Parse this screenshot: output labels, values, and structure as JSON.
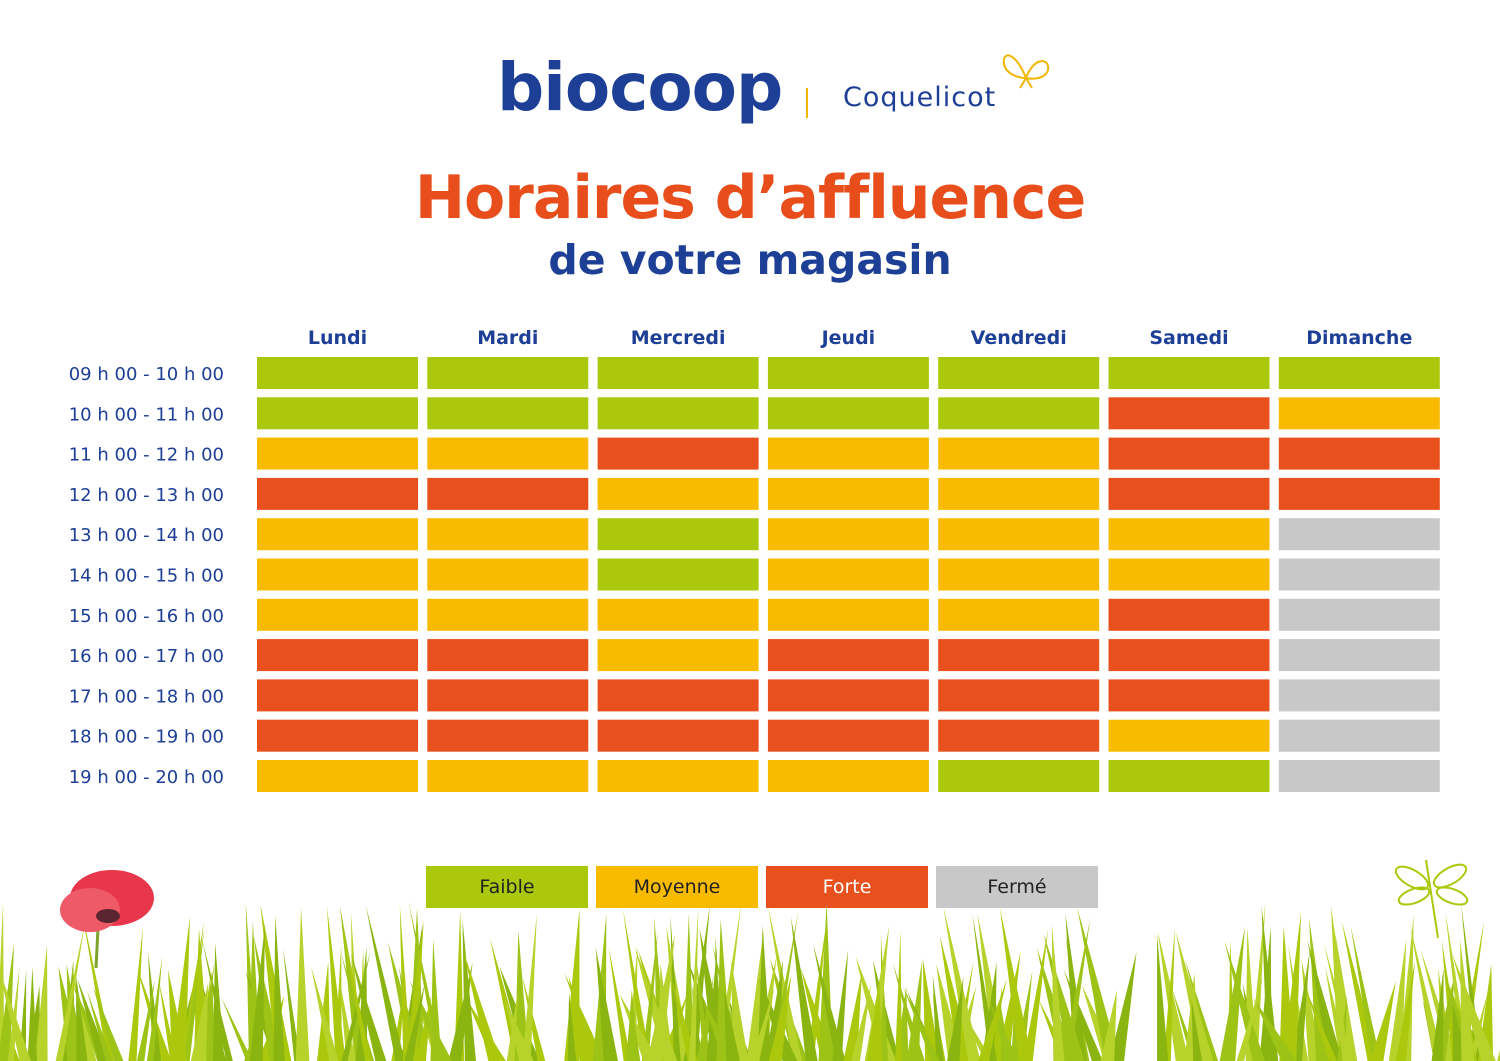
{
  "header": {
    "brand": "biocoop",
    "store": "Coquelicot",
    "title": "Horaires d’affluence",
    "subtitle": "de votre magasin"
  },
  "colors": {
    "Faible": "#abc80c",
    "Moyenne": "#f9bb00",
    "Forte": "#e8511e",
    "Fermé": "#c8c8c8",
    "brand_blue": "#1d3f95",
    "title_orange": "#e84e1b"
  },
  "legend": [
    {
      "label": "Faible",
      "label_color": "#222222"
    },
    {
      "label": "Moyenne",
      "label_color": "#222222"
    },
    {
      "label": "Forte",
      "label_color": "#ffffff"
    },
    {
      "label": "Fermé",
      "label_color": "#222222"
    }
  ],
  "chart_data": {
    "type": "heatmap",
    "columns": [
      "Lundi",
      "Mardi",
      "Mercredi",
      "Jeudi",
      "Vendredi",
      "Samedi",
      "Dimanche"
    ],
    "rows": [
      "09 h 00 - 10 h 00",
      "10 h 00 - 11 h 00",
      "11 h 00 - 12 h 00",
      "12 h 00 - 13 h 00",
      "13 h 00 - 14 h 00",
      "14 h 00 - 15 h 00",
      "15 h 00 - 16 h 00",
      "16 h 00 - 17 h 00",
      "17 h 00 - 18 h 00",
      "18 h 00 - 19 h 00",
      "19 h 00 - 20 h 00"
    ],
    "values": [
      [
        "Faible",
        "Faible",
        "Faible",
        "Faible",
        "Faible",
        "Faible",
        "Faible"
      ],
      [
        "Faible",
        "Faible",
        "Faible",
        "Faible",
        "Faible",
        "Forte",
        "Moyenne"
      ],
      [
        "Moyenne",
        "Moyenne",
        "Forte",
        "Moyenne",
        "Moyenne",
        "Forte",
        "Forte"
      ],
      [
        "Forte",
        "Forte",
        "Moyenne",
        "Moyenne",
        "Moyenne",
        "Forte",
        "Forte"
      ],
      [
        "Moyenne",
        "Moyenne",
        "Faible",
        "Moyenne",
        "Moyenne",
        "Moyenne",
        "Fermé"
      ],
      [
        "Moyenne",
        "Moyenne",
        "Faible",
        "Moyenne",
        "Moyenne",
        "Moyenne",
        "Fermé"
      ],
      [
        "Moyenne",
        "Moyenne",
        "Moyenne",
        "Moyenne",
        "Moyenne",
        "Forte",
        "Fermé"
      ],
      [
        "Forte",
        "Forte",
        "Moyenne",
        "Forte",
        "Forte",
        "Forte",
        "Fermé"
      ],
      [
        "Forte",
        "Forte",
        "Forte",
        "Forte",
        "Forte",
        "Forte",
        "Fermé"
      ],
      [
        "Forte",
        "Forte",
        "Forte",
        "Forte",
        "Forte",
        "Moyenne",
        "Fermé"
      ],
      [
        "Moyenne",
        "Moyenne",
        "Moyenne",
        "Moyenne",
        "Faible",
        "Faible",
        "Fermé"
      ]
    ]
  }
}
